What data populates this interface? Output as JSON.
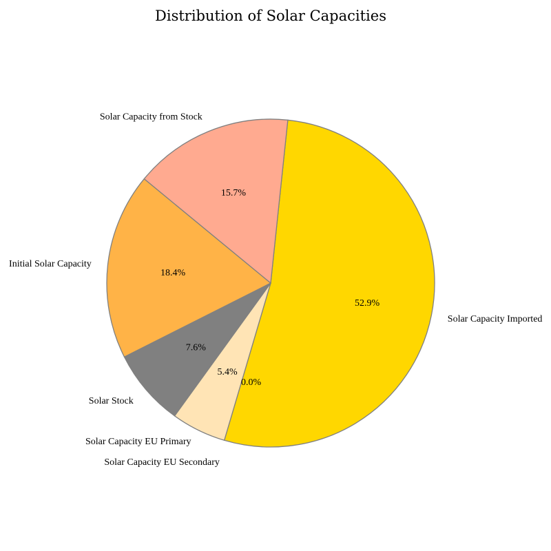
{
  "chart_data": {
    "type": "pie",
    "title": "Distribution of Solar Capacities",
    "slices": [
      {
        "label": "Solar Capacity Imported",
        "value": 52.9,
        "pct_text": "52.9%",
        "color": "#FFD700"
      },
      {
        "label": "Solar Capacity EU Secondary",
        "value": 0.0,
        "pct_text": "0.0%",
        "color": "#FFE4B5"
      },
      {
        "label": "Solar Capacity EU Primary",
        "value": 5.4,
        "pct_text": "5.4%",
        "color": "#FFE4B5"
      },
      {
        "label": "Solar Stock",
        "value": 7.6,
        "pct_text": "7.6%",
        "color": "#808080"
      },
      {
        "label": "Initial Solar Capacity",
        "value": 18.4,
        "pct_text": "18.4%",
        "color": "#FFB347"
      },
      {
        "label": "Solar Capacity from Stock",
        "value": 15.7,
        "pct_text": "15.7%",
        "color": "#FFAA90"
      }
    ],
    "edge_color": "#808080",
    "start_angle_deg": 84,
    "direction": "clockwise"
  }
}
